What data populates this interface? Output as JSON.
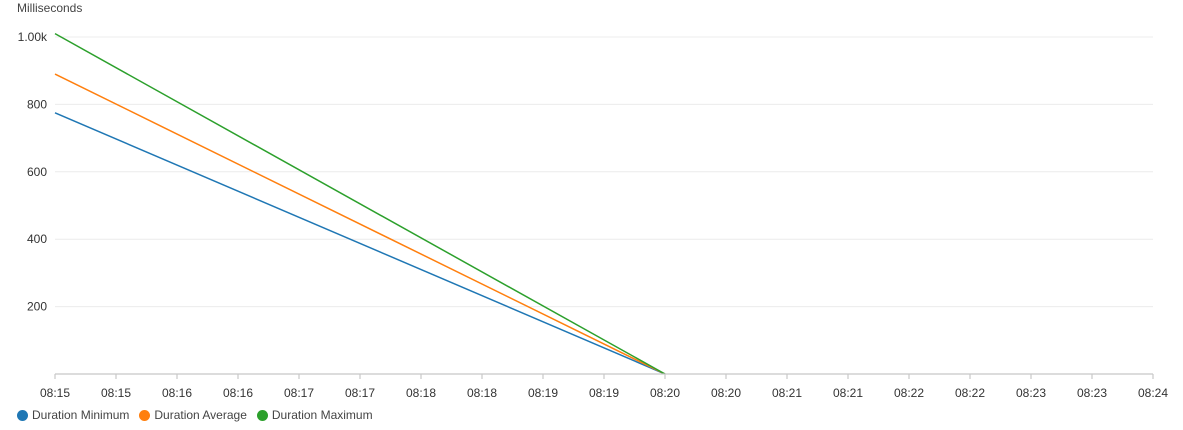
{
  "chart_data": {
    "type": "line",
    "ylabel": "Milliseconds",
    "xlabel": "",
    "title": "",
    "ylim": [
      0,
      1000
    ],
    "y_ticks": [
      200,
      400,
      600,
      800,
      1000
    ],
    "y_tick_labels": [
      "200",
      "400",
      "600",
      "800",
      "1.00k"
    ],
    "x_tick_labels": [
      "08:15",
      "08:15",
      "08:16",
      "08:16",
      "08:17",
      "08:17",
      "08:18",
      "08:18",
      "08:19",
      "08:19",
      "08:20",
      "08:20",
      "08:21",
      "08:21",
      "08:22",
      "08:22",
      "08:23",
      "08:23",
      "08:24"
    ],
    "x_points": [
      "08:15",
      "08:20"
    ],
    "series": [
      {
        "name": "Duration Minimum",
        "color": "#1f77b4",
        "values": [
          775,
          0
        ]
      },
      {
        "name": "Duration Average",
        "color": "#ff7f0e",
        "values": [
          890,
          0
        ]
      },
      {
        "name": "Duration Maximum",
        "color": "#2ca02c",
        "values": [
          1010,
          0
        ]
      }
    ],
    "grid": true,
    "legend_position": "bottom-left"
  }
}
